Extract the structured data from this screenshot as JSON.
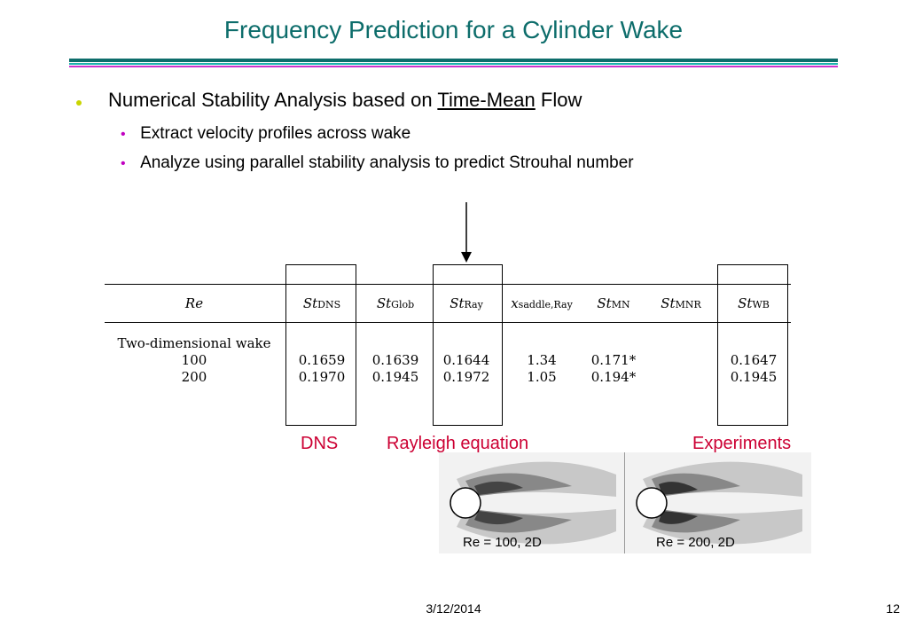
{
  "title": "Frequency Prediction for a Cylinder Wake",
  "bullet1": {
    "before": "Numerical Stability Analysis based on ",
    "underline": "Time-Mean",
    "after": " Flow"
  },
  "subbullets": [
    "Extract velocity profiles across wake",
    "Analyze using parallel stability analysis to predict Strouhal number"
  ],
  "table": {
    "headers": [
      {
        "main": "Re",
        "sub": ""
      },
      {
        "main": "St",
        "sub": "DNS"
      },
      {
        "main": "St",
        "sub": "Glob"
      },
      {
        "main": "St",
        "sub": "Ray"
      },
      {
        "main": "x",
        "sub": "saddle,Ray"
      },
      {
        "main": "St",
        "sub": "MN"
      },
      {
        "main": "St",
        "sub": "MNR"
      },
      {
        "main": "St",
        "sub": "WB"
      }
    ],
    "rows": [
      [
        "Two-dimensional wake",
        "",
        "",
        "",
        "",
        "",
        "",
        ""
      ],
      [
        "100",
        "0.1659",
        "0.1639",
        "0.1644",
        "1.34",
        "0.171*",
        "",
        "0.1647"
      ],
      [
        "200",
        "0.1970",
        "0.1945",
        "0.1972",
        "1.05",
        "0.194*",
        "",
        "0.1945"
      ]
    ]
  },
  "labels": {
    "dns": "DNS",
    "rayleigh": "Rayleigh equation",
    "experiments": "Experiments"
  },
  "images": {
    "left_caption": "Re = 100, 2D",
    "right_caption": "Re = 200, 2D"
  },
  "footer": {
    "date": "3/12/2014",
    "page": "12"
  },
  "colors": {
    "title": "#0d6d6b",
    "label": "#cc0033",
    "bullet": "#c9d500",
    "subbullet": "#c000c0"
  }
}
